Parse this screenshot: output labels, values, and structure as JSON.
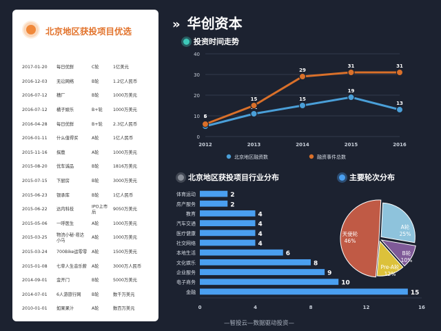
{
  "main_title": "华创资本",
  "main_title_chevron": "»",
  "colors": {
    "background": "#1c2230",
    "accent_orange": "#e2732c",
    "line_blue": "#4a9fd8",
    "line_orange": "#d9702a",
    "bar_blue": "#4a9ff0",
    "pie_a": "#8ec3dc",
    "pie_b": "#7f5a98",
    "pie_pre_a": "#dcc13a",
    "pie_angel": "#c05a45"
  },
  "left_panel": {
    "title": "北京地区获投项目优选",
    "deals": [
      {
        "date": "2017-01-20",
        "name": "每日优鲜",
        "round": "C轮",
        "amount": "1亿美元"
      },
      {
        "date": "2016-12-03",
        "name": "无讼网络",
        "round": "B轮",
        "amount": "1.2亿人民币"
      },
      {
        "date": "2016-07-12",
        "name": "穗厂",
        "round": "B轮",
        "amount": "1000万美元"
      },
      {
        "date": "2016-07-12",
        "name": "橘子娱乐",
        "round": "B+轮",
        "amount": "1000万美元"
      },
      {
        "date": "2016-04-28",
        "name": "每日优鲜",
        "round": "B+轮",
        "amount": "2.3亿人民币"
      },
      {
        "date": "2016-01-11",
        "name": "什么值得买",
        "round": "A轮",
        "amount": "1亿人民币"
      },
      {
        "date": "2015-11-16",
        "name": "探鹿",
        "round": "A轮",
        "amount": "1000万美元"
      },
      {
        "date": "2015-08-20",
        "name": "优车诚品",
        "round": "B轮",
        "amount": "1816万美元"
      },
      {
        "date": "2015-07-15",
        "name": "下厨房",
        "round": "B轮",
        "amount": "3000万美元"
      },
      {
        "date": "2015-06-23",
        "name": "银承库",
        "round": "B轮",
        "amount": "1亿人民币"
      },
      {
        "date": "2015-06-22",
        "name": "达内科技",
        "round": "IPO上市后",
        "amount": "9050万美元"
      },
      {
        "date": "2015-05-06",
        "name": "一呼医生",
        "round": "A轮",
        "amount": "1000万美元"
      },
      {
        "date": "2015-03-25",
        "name": "物流小秘-易达小马",
        "round": "A轮",
        "amount": "1000万美元"
      },
      {
        "date": "2015-03-24",
        "name": "700Bike运零零",
        "round": "A轮",
        "amount": "1500万美元"
      },
      {
        "date": "2015-01-08",
        "name": "七草人生音乐薪",
        "round": "A轮",
        "amount": "3000万人民币"
      },
      {
        "date": "2014-09-01",
        "name": "金开门",
        "round": "B轮",
        "amount": "5000万美元"
      },
      {
        "date": "2014-07-01",
        "name": "6人游旅行网",
        "round": "B轮",
        "amount": "数千万美元"
      },
      {
        "date": "2010-01-01",
        "name": "如果果汁",
        "round": "A轮",
        "amount": "数百万美元"
      }
    ]
  },
  "line_section_title": "投资时间走势",
  "bar_section_title": "北京地区获投项目行业分布",
  "pie_section_title": "主要轮次分布",
  "footer": "—智投云—数据驱动投资—",
  "chart_data": [
    {
      "type": "line",
      "title": "投资时间走势",
      "x": [
        "2012",
        "2013",
        "2014",
        "2015",
        "2016"
      ],
      "ylim": [
        0,
        40
      ],
      "yticks": [
        0,
        10,
        20,
        30,
        40
      ],
      "grid": true,
      "legend": "bottom",
      "series": [
        {
          "name": "北京地区融资数",
          "values": [
            5,
            11,
            15,
            19,
            13
          ],
          "labels": [
            "5",
            "11",
            "15",
            "19",
            "13"
          ]
        },
        {
          "name": "融资事件总数",
          "values": [
            6,
            15,
            29,
            31,
            31
          ],
          "labels": [
            "6",
            "15",
            "29",
            "31",
            "31"
          ]
        }
      ]
    },
    {
      "type": "bar",
      "orientation": "horizontal",
      "title": "北京地区获投项目行业分布",
      "categories": [
        "体育运动",
        "房产服务",
        "教育",
        "汽车交通",
        "医疗健康",
        "社交网络",
        "本地生活",
        "文化娱乐",
        "企业服务",
        "电子商务",
        "金融"
      ],
      "values": [
        2,
        2,
        4,
        4,
        4,
        4,
        6,
        8,
        9,
        10,
        15
      ],
      "xlim": [
        0,
        16
      ],
      "xticks": [
        0,
        4,
        8,
        12,
        16
      ]
    },
    {
      "type": "pie",
      "title": "主要轮次分布",
      "slices": [
        {
          "label": "A轮",
          "percent_label": "25%",
          "value": 25
        },
        {
          "label": "B轮",
          "percent_label": "10%",
          "value": 10
        },
        {
          "label": "Pre-A轮",
          "percent_label": "12%",
          "value": 12
        },
        {
          "label": "天使轮",
          "percent_label": "46%",
          "value": 46
        }
      ]
    }
  ]
}
